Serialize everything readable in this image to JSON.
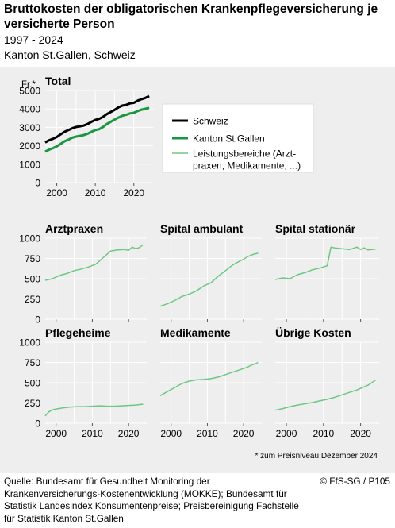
{
  "header": {
    "title": "Bruttokosten der obligatorischen Krankenpflegeversicherung je versicherte Person",
    "subtitle_years": "1997 - 2024",
    "subtitle_region": "Kanton St.Gallen, Schweiz"
  },
  "footer": {
    "source": "Quelle: Bundesamt für Gesundheit Monitoring der Krankenversicherungs-Kostenentwicklung (MOKKE); Bundesamt für Statistik Landesindex Konsumentenpreise; Preisbereinigung Fachstelle für Statistik Kanton St.Gallen",
    "copyright": "© FfS-SG / P105"
  },
  "note": "* zum Preisniveau Dezember 2024",
  "colors": {
    "background": "#eeeeee",
    "grid": "#ffffff",
    "schweiz": "#000000",
    "kanton": "#1a9641",
    "leistung": "#6cc784"
  },
  "legend": {
    "items": [
      {
        "label": "Schweiz",
        "color": "#000000",
        "width": 3
      },
      {
        "label": "Kanton St.Gallen",
        "color": "#1a9641",
        "width": 3
      },
      {
        "label": "Leistungsbereiche (Arzt-praxen, Medikamente, ...)",
        "line1": "Leistungsbereiche (Arzt-",
        "line2": "praxen, Medikamente, ...)",
        "color": "#6cc784",
        "width": 1.5
      }
    ]
  },
  "axis_common": {
    "x_ticks": [
      2000,
      2010,
      2020
    ],
    "xlim": [
      1997,
      2025
    ]
  },
  "chart_data": [
    {
      "type": "line",
      "title": "Total",
      "ylabel": "Fr.*",
      "ylim": [
        0,
        5000
      ],
      "y_ticks": [
        0,
        1000,
        2000,
        3000,
        4000,
        5000
      ],
      "series": [
        {
          "name": "Schweiz",
          "color": "#000000",
          "points": [
            [
              1997,
              2180
            ],
            [
              1998,
              2300
            ],
            [
              1999,
              2380
            ],
            [
              2000,
              2480
            ],
            [
              2001,
              2620
            ],
            [
              2002,
              2760
            ],
            [
              2003,
              2850
            ],
            [
              2004,
              2950
            ],
            [
              2005,
              3020
            ],
            [
              2006,
              3050
            ],
            [
              2007,
              3100
            ],
            [
              2008,
              3180
            ],
            [
              2009,
              3300
            ],
            [
              2010,
              3400
            ],
            [
              2011,
              3460
            ],
            [
              2012,
              3570
            ],
            [
              2013,
              3720
            ],
            [
              2014,
              3830
            ],
            [
              2015,
              3950
            ],
            [
              2016,
              4080
            ],
            [
              2017,
              4180
            ],
            [
              2018,
              4220
            ],
            [
              2019,
              4300
            ],
            [
              2020,
              4330
            ],
            [
              2021,
              4450
            ],
            [
              2022,
              4530
            ],
            [
              2023,
              4600
            ],
            [
              2024,
              4700
            ]
          ]
        },
        {
          "name": "Kanton St.Gallen",
          "color": "#1a9641",
          "points": [
            [
              1997,
              1680
            ],
            [
              1998,
              1790
            ],
            [
              1999,
              1870
            ],
            [
              2000,
              1970
            ],
            [
              2001,
              2100
            ],
            [
              2002,
              2240
            ],
            [
              2003,
              2330
            ],
            [
              2004,
              2440
            ],
            [
              2005,
              2500
            ],
            [
              2006,
              2540
            ],
            [
              2007,
              2580
            ],
            [
              2008,
              2650
            ],
            [
              2009,
              2760
            ],
            [
              2010,
              2850
            ],
            [
              2011,
              2900
            ],
            [
              2012,
              3020
            ],
            [
              2013,
              3180
            ],
            [
              2014,
              3300
            ],
            [
              2015,
              3420
            ],
            [
              2016,
              3530
            ],
            [
              2017,
              3630
            ],
            [
              2018,
              3680
            ],
            [
              2019,
              3760
            ],
            [
              2020,
              3790
            ],
            [
              2021,
              3890
            ],
            [
              2022,
              3960
            ],
            [
              2023,
              4010
            ],
            [
              2024,
              4060
            ]
          ]
        }
      ]
    },
    {
      "type": "line",
      "title": "Arztpraxen",
      "ylim": [
        0,
        1000
      ],
      "y_ticks": [
        0,
        250,
        500,
        750,
        1000
      ],
      "series": [
        {
          "name": "Kanton St.Gallen",
          "color": "#6cc784",
          "points": [
            [
              1997,
              480
            ],
            [
              1999,
              500
            ],
            [
              2001,
              540
            ],
            [
              2003,
              565
            ],
            [
              2005,
              600
            ],
            [
              2007,
              620
            ],
            [
              2009,
              645
            ],
            [
              2011,
              680
            ],
            [
              2013,
              760
            ],
            [
              2015,
              840
            ],
            [
              2017,
              855
            ],
            [
              2019,
              860
            ],
            [
              2020,
              850
            ],
            [
              2021,
              890
            ],
            [
              2022,
              870
            ],
            [
              2023,
              885
            ],
            [
              2024,
              920
            ]
          ]
        }
      ]
    },
    {
      "type": "line",
      "title": "Spital ambulant",
      "ylim": [
        0,
        1000
      ],
      "y_ticks": [
        0,
        250,
        500,
        750,
        1000
      ],
      "series": [
        {
          "name": "Kanton St.Gallen",
          "color": "#6cc784",
          "points": [
            [
              1997,
              160
            ],
            [
              1999,
              190
            ],
            [
              2001,
              230
            ],
            [
              2003,
              280
            ],
            [
              2005,
              310
            ],
            [
              2007,
              350
            ],
            [
              2009,
              410
            ],
            [
              2011,
              450
            ],
            [
              2013,
              530
            ],
            [
              2015,
              600
            ],
            [
              2017,
              670
            ],
            [
              2019,
              720
            ],
            [
              2020,
              740
            ],
            [
              2021,
              770
            ],
            [
              2022,
              790
            ],
            [
              2023,
              805
            ],
            [
              2024,
              815
            ]
          ]
        }
      ]
    },
    {
      "type": "line",
      "title": "Spital stationär",
      "ylim": [
        0,
        1000
      ],
      "y_ticks": [
        0,
        250,
        500,
        750,
        1000
      ],
      "series": [
        {
          "name": "Kanton St.Gallen",
          "color": "#6cc784",
          "points": [
            [
              1997,
              490
            ],
            [
              1999,
              510
            ],
            [
              2001,
              500
            ],
            [
              2003,
              550
            ],
            [
              2005,
              575
            ],
            [
              2007,
              610
            ],
            [
              2009,
              630
            ],
            [
              2011,
              660
            ],
            [
              2012,
              890
            ],
            [
              2013,
              880
            ],
            [
              2015,
              870
            ],
            [
              2017,
              860
            ],
            [
              2019,
              890
            ],
            [
              2020,
              860
            ],
            [
              2021,
              880
            ],
            [
              2022,
              855
            ],
            [
              2023,
              860
            ],
            [
              2024,
              865
            ]
          ]
        }
      ]
    },
    {
      "type": "line",
      "title": "Pflegeheime",
      "ylim": [
        0,
        1000
      ],
      "y_ticks": [
        0,
        250,
        500,
        750,
        1000
      ],
      "series": [
        {
          "name": "Kanton St.Gallen",
          "color": "#6cc784",
          "points": [
            [
              1997,
              90
            ],
            [
              1998,
              140
            ],
            [
              1999,
              165
            ],
            [
              2000,
              175
            ],
            [
              2002,
              190
            ],
            [
              2004,
              200
            ],
            [
              2006,
              205
            ],
            [
              2008,
              205
            ],
            [
              2010,
              210
            ],
            [
              2012,
              215
            ],
            [
              2014,
              210
            ],
            [
              2016,
              210
            ],
            [
              2018,
              215
            ],
            [
              2020,
              220
            ],
            [
              2022,
              225
            ],
            [
              2024,
              235
            ]
          ]
        }
      ]
    },
    {
      "type": "line",
      "title": "Medikamente",
      "ylim": [
        0,
        1000
      ],
      "y_ticks": [
        0,
        250,
        500,
        750,
        1000
      ],
      "series": [
        {
          "name": "Kanton St.Gallen",
          "color": "#6cc784",
          "points": [
            [
              1997,
              340
            ],
            [
              1999,
              390
            ],
            [
              2001,
              440
            ],
            [
              2003,
              490
            ],
            [
              2005,
              520
            ],
            [
              2007,
              535
            ],
            [
              2009,
              540
            ],
            [
              2011,
              550
            ],
            [
              2013,
              570
            ],
            [
              2015,
              600
            ],
            [
              2017,
              630
            ],
            [
              2019,
              660
            ],
            [
              2021,
              690
            ],
            [
              2022,
              715
            ],
            [
              2023,
              730
            ],
            [
              2024,
              750
            ]
          ]
        }
      ]
    },
    {
      "type": "line",
      "title": "Übrige Kosten",
      "ylim": [
        0,
        1000
      ],
      "y_ticks": [
        0,
        250,
        500,
        750,
        1000
      ],
      "series": [
        {
          "name": "Kanton St.Gallen",
          "color": "#6cc784",
          "points": [
            [
              1997,
              160
            ],
            [
              1999,
              180
            ],
            [
              2001,
              205
            ],
            [
              2003,
              225
            ],
            [
              2005,
              240
            ],
            [
              2007,
              255
            ],
            [
              2009,
              275
            ],
            [
              2011,
              295
            ],
            [
              2013,
              320
            ],
            [
              2015,
              350
            ],
            [
              2017,
              380
            ],
            [
              2019,
              410
            ],
            [
              2021,
              450
            ],
            [
              2022,
              470
            ],
            [
              2023,
              500
            ],
            [
              2024,
              530
            ]
          ]
        }
      ]
    }
  ]
}
